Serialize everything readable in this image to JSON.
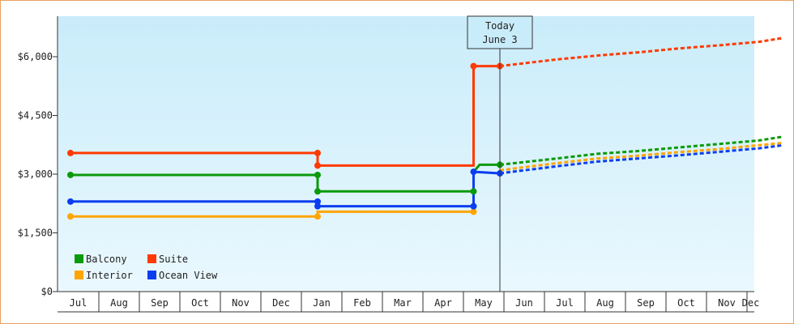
{
  "chart_data": {
    "type": "line",
    "y_ticks": [
      "$0",
      "$1,500",
      "$3,000",
      "$4,500",
      "$6,000"
    ],
    "ylim": [
      0,
      6000
    ],
    "x_months": [
      "Jul",
      "Aug",
      "Sep",
      "Oct",
      "Nov",
      "Dec",
      "Jan",
      "Feb",
      "Mar",
      "Apr",
      "May",
      "Jun",
      "Jul",
      "Aug",
      "Sep",
      "Oct",
      "Nov",
      "Dec"
    ],
    "today": {
      "line1": "Today",
      "line2": "June 3",
      "x": 10.6
    },
    "legend": {
      "placement": "bottom-left"
    },
    "background": {
      "top": "#c9ecfa",
      "bottom": "#eaf8fe"
    },
    "series": [
      {
        "name": "Balcony",
        "color": "#0a9a0a",
        "actual": [
          [
            0,
            2980
          ],
          [
            6.1,
            2980
          ],
          [
            6.1,
            2560
          ],
          [
            9.95,
            2560
          ],
          [
            9.95,
            3060
          ],
          [
            10.1,
            3240
          ],
          [
            10.6,
            3240
          ]
        ],
        "forecast": [
          [
            10.6,
            3240
          ],
          [
            12,
            3400
          ],
          [
            13,
            3520
          ],
          [
            14,
            3590
          ],
          [
            15,
            3680
          ],
          [
            16,
            3770
          ],
          [
            17,
            3860
          ],
          [
            17.6,
            3960
          ]
        ]
      },
      {
        "name": "Suite",
        "color": "#ff3a00",
        "actual": [
          [
            0,
            3540
          ],
          [
            6.1,
            3540
          ],
          [
            6.1,
            3220
          ],
          [
            9.95,
            3220
          ],
          [
            9.95,
            5760
          ],
          [
            10.6,
            5760
          ]
        ],
        "forecast": [
          [
            10.6,
            5760
          ],
          [
            12,
            5930
          ],
          [
            13,
            6030
          ],
          [
            14,
            6110
          ],
          [
            15,
            6210
          ],
          [
            16,
            6290
          ],
          [
            17,
            6380
          ],
          [
            17.6,
            6480
          ]
        ]
      },
      {
        "name": "Interior",
        "color": "#ffa500",
        "actual": [
          [
            0,
            1920
          ],
          [
            6.1,
            1920
          ],
          [
            6.1,
            2040
          ],
          [
            9.95,
            2040
          ]
        ],
        "forecast": [
          [
            10.6,
            3100
          ],
          [
            12,
            3280
          ],
          [
            13,
            3400
          ],
          [
            14,
            3470
          ],
          [
            15,
            3560
          ],
          [
            16,
            3640
          ],
          [
            17,
            3740
          ],
          [
            17.6,
            3800
          ]
        ]
      },
      {
        "name": "Ocean View",
        "color": "#0b3ef0",
        "actual": [
          [
            0,
            2300
          ],
          [
            6.1,
            2300
          ],
          [
            6.1,
            2180
          ],
          [
            9.95,
            2180
          ],
          [
            9.95,
            3060
          ],
          [
            10.6,
            3020
          ]
        ],
        "forecast": [
          [
            10.6,
            3020
          ],
          [
            12,
            3200
          ],
          [
            13,
            3320
          ],
          [
            14,
            3400
          ],
          [
            15,
            3480
          ],
          [
            16,
            3570
          ],
          [
            17,
            3660
          ],
          [
            17.6,
            3740
          ]
        ]
      }
    ],
    "markers": {
      "Balcony": [
        [
          0,
          2980
        ],
        [
          6.1,
          2980
        ],
        [
          6.1,
          2560
        ],
        [
          9.95,
          2560
        ],
        [
          10.6,
          3240
        ]
      ],
      "Suite": [
        [
          0,
          3540
        ],
        [
          6.1,
          3540
        ],
        [
          6.1,
          3220
        ],
        [
          9.95,
          5760
        ],
        [
          10.6,
          5760
        ]
      ],
      "Interior": [
        [
          0,
          1920
        ],
        [
          6.1,
          1920
        ],
        [
          9.95,
          2040
        ]
      ],
      "Ocean View": [
        [
          0,
          2300
        ],
        [
          6.1,
          2300
        ],
        [
          6.1,
          2180
        ],
        [
          9.95,
          2180
        ],
        [
          9.95,
          3060
        ],
        [
          10.6,
          3020
        ]
      ]
    }
  }
}
